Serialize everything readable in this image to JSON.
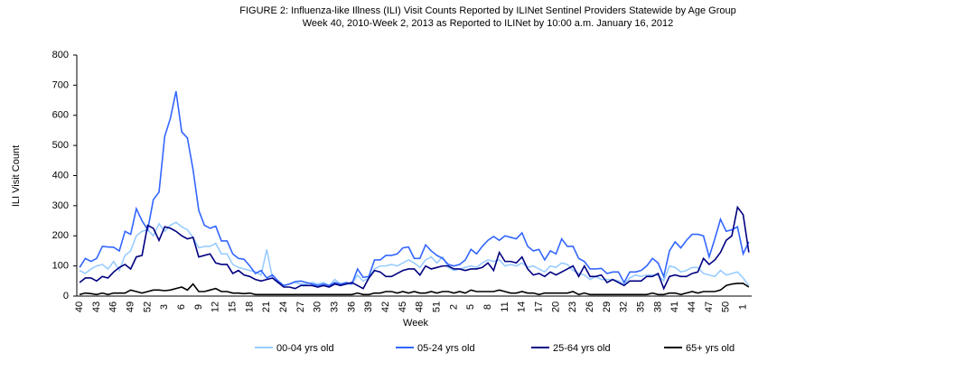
{
  "chart_data": {
    "type": "line",
    "title": "FIGURE 2: Influenza-like Illness (ILI) Visit Counts Reported by ILINet Sentinel Providers Statewide by Age Group",
    "subtitle": "Week 40, 2010-Week 2, 2013 as Reported to ILINet by 10:00 a.m. January 16, 2012",
    "x_label": "Week",
    "y_label": "ILI Visit Count",
    "categories": [
      "40",
      null,
      null,
      "43",
      null,
      null,
      "46",
      null,
      null,
      "49",
      null,
      null,
      "52",
      null,
      null,
      "3",
      null,
      null,
      "6",
      null,
      null,
      "9",
      null,
      null,
      "12",
      null,
      null,
      "15",
      null,
      null,
      "18",
      null,
      null,
      "21",
      null,
      null,
      "24",
      null,
      null,
      "27",
      null,
      null,
      "30",
      null,
      null,
      "33",
      null,
      null,
      "36",
      null,
      null,
      "39",
      null,
      null,
      "42",
      null,
      null,
      "45",
      null,
      null,
      "48",
      null,
      null,
      "51",
      null,
      null,
      "2",
      null,
      null,
      "5",
      null,
      null,
      "8",
      null,
      null,
      "11",
      null,
      null,
      "14",
      null,
      null,
      "17",
      null,
      null,
      "20",
      null,
      null,
      "23",
      null,
      null,
      "26",
      null,
      null,
      "29",
      null,
      null,
      "32",
      null,
      null,
      "35",
      null,
      null,
      "38",
      null,
      null,
      "41",
      null,
      null,
      "44",
      null,
      null,
      "47",
      null,
      null,
      "50",
      null,
      null,
      "1",
      null
    ],
    "ylim": [
      0,
      800
    ],
    "yticks": [
      0,
      100,
      200,
      300,
      400,
      500,
      600,
      700,
      800
    ],
    "grid": false,
    "series": [
      {
        "name": "00-04 yrs old",
        "color": "#99ccff",
        "values": [
          85,
          75,
          90,
          100,
          105,
          90,
          115,
          85,
          135,
          150,
          200,
          215,
          220,
          200,
          240,
          215,
          235,
          245,
          230,
          220,
          195,
          160,
          165,
          165,
          175,
          140,
          140,
          105,
          95,
          90,
          85,
          80,
          70,
          155,
          60,
          45,
          35,
          40,
          45,
          40,
          40,
          45,
          40,
          45,
          35,
          55,
          40,
          40,
          40,
          70,
          50,
          60,
          90,
          100,
          100,
          105,
          100,
          110,
          120,
          110,
          95,
          120,
          130,
          110,
          130,
          95,
          85,
          90,
          95,
          100,
          95,
          110,
          120,
          115,
          120,
          100,
          105,
          100,
          110,
          95,
          100,
          90,
          80,
          100,
          95,
          110,
          105,
          85,
          75,
          70,
          55,
          65,
          55,
          55,
          55,
          50,
          40,
          60,
          70,
          65,
          70,
          70,
          70,
          50,
          100,
          95,
          80,
          85,
          95,
          95,
          75,
          70,
          65,
          85,
          70,
          75,
          80,
          60,
          35
        ]
      },
      {
        "name": "05-24 yrs old",
        "color": "#3366ff",
        "values": [
          95,
          125,
          115,
          125,
          165,
          163,
          162,
          150,
          215,
          205,
          290,
          250,
          220,
          320,
          345,
          530,
          590,
          680,
          545,
          525,
          420,
          285,
          235,
          225,
          232,
          183,
          183,
          140,
          125,
          122,
          100,
          75,
          85,
          60,
          70,
          50,
          35,
          40,
          48,
          50,
          45,
          40,
          35,
          40,
          35,
          45,
          40,
          45,
          40,
          90,
          62,
          65,
          120,
          120,
          135,
          135,
          140,
          160,
          163,
          125,
          125,
          170,
          150,
          135,
          125,
          105,
          100,
          105,
          120,
          155,
          140,
          165,
          185,
          198,
          185,
          200,
          195,
          190,
          210,
          165,
          150,
          155,
          120,
          150,
          140,
          190,
          165,
          165,
          125,
          115,
          90,
          90,
          92,
          75,
          80,
          80,
          45,
          80,
          80,
          85,
          100,
          125,
          110,
          65,
          150,
          180,
          160,
          185,
          205,
          205,
          200,
          130,
          190,
          255,
          215,
          220,
          230,
          140,
          180
        ]
      },
      {
        "name": "25-64 yrs old",
        "color": "#000080",
        "values": [
          45,
          60,
          60,
          50,
          65,
          60,
          80,
          95,
          105,
          90,
          130,
          135,
          235,
          225,
          185,
          230,
          225,
          215,
          200,
          190,
          195,
          130,
          135,
          140,
          110,
          105,
          105,
          75,
          85,
          70,
          65,
          55,
          50,
          55,
          60,
          45,
          30,
          30,
          25,
          35,
          35,
          35,
          30,
          35,
          30,
          40,
          35,
          40,
          45,
          35,
          25,
          60,
          85,
          80,
          65,
          65,
          75,
          85,
          90,
          90,
          70,
          100,
          90,
          95,
          100,
          100,
          90,
          90,
          85,
          90,
          90,
          95,
          110,
          85,
          145,
          115,
          115,
          110,
          130,
          90,
          70,
          75,
          65,
          80,
          70,
          80,
          90,
          100,
          65,
          100,
          65,
          65,
          70,
          45,
          55,
          45,
          35,
          50,
          50,
          50,
          65,
          65,
          75,
          25,
          65,
          70,
          65,
          65,
          75,
          80,
          125,
          105,
          120,
          145,
          185,
          200,
          295,
          270,
          145
        ]
      },
      {
        "name": "65+ yrs old",
        "color": "#000000",
        "values": [
          5,
          10,
          8,
          5,
          10,
          5,
          10,
          10,
          10,
          20,
          15,
          10,
          15,
          20,
          20,
          18,
          20,
          25,
          30,
          20,
          40,
          15,
          15,
          20,
          25,
          15,
          15,
          10,
          10,
          8,
          10,
          5,
          5,
          5,
          5,
          5,
          5,
          5,
          5,
          5,
          5,
          5,
          5,
          5,
          5,
          5,
          5,
          5,
          5,
          10,
          5,
          5,
          10,
          10,
          15,
          15,
          10,
          15,
          10,
          15,
          10,
          10,
          15,
          10,
          15,
          15,
          10,
          15,
          10,
          20,
          15,
          15,
          15,
          15,
          20,
          15,
          10,
          10,
          15,
          10,
          10,
          5,
          10,
          10,
          10,
          10,
          10,
          15,
          5,
          10,
          5,
          5,
          5,
          5,
          5,
          5,
          5,
          5,
          5,
          5,
          5,
          10,
          5,
          5,
          10,
          10,
          5,
          10,
          15,
          10,
          15,
          15,
          15,
          20,
          35,
          40,
          42,
          42,
          30
        ]
      }
    ]
  }
}
